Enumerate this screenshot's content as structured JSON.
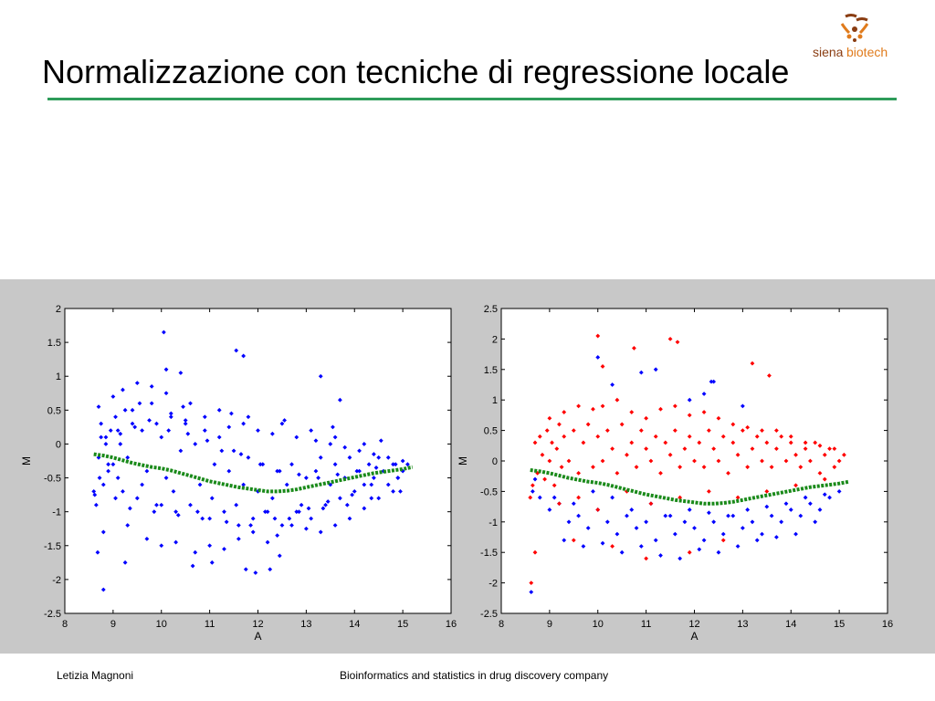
{
  "slide": {
    "title": "Normalizzazione con tecniche di regressione locale",
    "logo_text_1": "siena",
    "logo_text_2": "biotech",
    "footer_author": "Letizia Magnoni",
    "footer_description": "Bioinformatics and statistics in drug discovery company"
  },
  "colors": {
    "accent_line": "#2e9c5a",
    "logo_brown": "#8a3d12",
    "logo_orange": "#e07b1c"
  },
  "chart_data": [
    {
      "type": "scatter",
      "title": "",
      "xlabel": "A",
      "ylabel": "M",
      "xlim": [
        8,
        16
      ],
      "ylim": [
        -2.5,
        2
      ],
      "xticks": [
        8,
        9,
        10,
        11,
        12,
        13,
        14,
        15,
        16
      ],
      "xtick_labels": [
        "8",
        "9",
        "10",
        "11",
        "12",
        "13",
        "14",
        "15",
        "16"
      ],
      "yticks": [
        -2.5,
        -2,
        -1.5,
        -1,
        -0.5,
        0,
        0.5,
        1,
        1.5,
        2
      ],
      "ytick_labels": [
        "-2.5",
        "-2",
        "-1.5",
        "-1",
        "-0.5",
        "0",
        "0.5",
        "1",
        "1.5",
        "2"
      ],
      "grid": false,
      "series": [
        {
          "color": "#0000ff",
          "kind": "points",
          "x": [
            8.7,
            8.75,
            8.8,
            8.85,
            8.9,
            8.95,
            9.0,
            9.05,
            9.1,
            9.15,
            9.2,
            9.25,
            9.3,
            9.4,
            9.5,
            9.6,
            9.7,
            9.8,
            9.9,
            10.0,
            10.1,
            10.2,
            10.3,
            10.4,
            10.5,
            10.6,
            10.7,
            10.8,
            10.9,
            11.0,
            11.1,
            11.2,
            11.3,
            11.4,
            11.5,
            11.6,
            11.7,
            11.8,
            11.9,
            12.0,
            12.1,
            12.2,
            12.3,
            12.4,
            12.5,
            12.6,
            12.7,
            12.8,
            12.9,
            13.0,
            13.1,
            13.2,
            13.3,
            13.4,
            13.5,
            13.6,
            13.7,
            13.8,
            13.9,
            14.0,
            14.1,
            14.2,
            14.3,
            14.4,
            14.5,
            14.6,
            14.7,
            14.8,
            14.9,
            15.0,
            15.1,
            8.6,
            8.65,
            8.7,
            9.0,
            9.2,
            9.5,
            9.8,
            10.1,
            10.4,
            10.1,
            10.6,
            11.2,
            11.8,
            12.5,
            13.1,
            13.6,
            14.2,
            8.8,
            9.3,
            9.7,
            10.0,
            10.3,
            10.7,
            11.0,
            11.3,
            11.6,
            11.9,
            12.2,
            12.4,
            12.7,
            13.0,
            13.3,
            13.6,
            13.9,
            14.2,
            14.5,
            14.8,
            8.75,
            9.1,
            9.4,
            9.9,
            10.2,
            10.5,
            10.9,
            11.4,
            11.7,
            12.0,
            12.3,
            12.8,
            13.2,
            13.5,
            13.8,
            14.1,
            14.4,
            14.7,
            15.0,
            8.72,
            8.9,
            9.05,
            9.6,
            10.0,
            10.25,
            10.75,
            11.05,
            11.55,
            12.15,
            12.65,
            13.05,
            13.45,
            13.95,
            14.35,
            14.9,
            8.85,
            9.15,
            9.45,
            9.75,
            10.15,
            10.55,
            10.95,
            11.25,
            11.65,
            12.05,
            12.45,
            12.85,
            13.25,
            13.65,
            14.05,
            14.45,
            14.85,
            9.35,
            9.85,
            10.35,
            10.85,
            11.35,
            11.85,
            12.35,
            12.85,
            13.35,
            13.85,
            14.35,
            14.95,
            9.55,
            10.45,
            11.45,
            12.55,
            13.55,
            14.55,
            11.05,
            12.25,
            12.45,
            11.95,
            9.25,
            10.65,
            11.75,
            8.68,
            8.8,
            13.3,
            13.7,
            11.55,
            11.7,
            10.05,
            8.62
          ],
          "y": [
            -0.2,
            0.3,
            -0.6,
            0.1,
            -0.4,
            0.2,
            -0.3,
            0.4,
            -0.5,
            0.0,
            -0.7,
            0.5,
            -0.2,
            0.3,
            -0.8,
            0.2,
            -0.4,
            0.6,
            -0.9,
            0.1,
            -0.5,
            0.4,
            -1.0,
            -0.1,
            0.3,
            -0.9,
            0.0,
            -0.6,
            0.2,
            -1.1,
            -0.3,
            0.1,
            -1.0,
            -0.4,
            -0.1,
            -1.2,
            -0.6,
            -0.2,
            -1.1,
            -0.7,
            -0.3,
            -1.0,
            -0.8,
            -0.4,
            -1.2,
            -0.6,
            -0.3,
            -1.0,
            -0.9,
            -0.5,
            -1.1,
            -0.4,
            -0.2,
            -0.9,
            -0.6,
            -0.3,
            -0.8,
            -0.5,
            -0.2,
            -0.7,
            -0.4,
            -0.6,
            -0.3,
            -0.5,
            -0.2,
            -0.4,
            -0.6,
            -0.3,
            -0.5,
            -0.4,
            -0.3,
            -0.7,
            -0.9,
            0.55,
            0.7,
            0.8,
            0.9,
            0.85,
            1.1,
            1.05,
            0.75,
            0.6,
            0.5,
            0.4,
            0.3,
            0.2,
            0.1,
            0.0,
            -1.3,
            -1.2,
            -1.4,
            -1.5,
            -1.45,
            -1.6,
            -1.5,
            -1.55,
            -1.4,
            -1.3,
            -1.45,
            -1.35,
            -1.2,
            -1.25,
            -1.3,
            -1.2,
            -1.1,
            -0.95,
            -0.8,
            -0.7,
            0.1,
            0.2,
            0.5,
            0.3,
            0.45,
            0.35,
            0.4,
            0.25,
            0.3,
            0.2,
            0.15,
            0.1,
            0.05,
            0.0,
            -0.05,
            -0.1,
            -0.15,
            -0.2,
            -0.25,
            -0.5,
            -0.3,
            -0.8,
            -0.6,
            -0.9,
            -0.7,
            -1.0,
            -0.8,
            -0.9,
            -1.0,
            -1.1,
            -0.95,
            -0.85,
            -0.75,
            -0.6,
            -0.5,
            0.0,
            0.15,
            0.25,
            0.35,
            0.2,
            0.15,
            0.05,
            -0.1,
            -0.15,
            -0.3,
            -0.4,
            -0.45,
            -0.5,
            -0.45,
            -0.4,
            -0.35,
            -0.3,
            -0.95,
            -1.0,
            -1.05,
            -1.1,
            -1.15,
            -1.2,
            -1.1,
            -1.0,
            -0.95,
            -0.9,
            -0.8,
            -0.7,
            0.6,
            0.55,
            0.45,
            0.35,
            0.25,
            0.05,
            -1.75,
            -1.85,
            -1.65,
            -1.9,
            -1.75,
            -1.8,
            -1.85,
            -1.6,
            -2.15,
            1.0,
            0.65,
            1.38,
            1.3,
            1.65,
            -0.75
          ],
          "name": ""
        },
        {
          "color": "#1a8a1a",
          "kind": "curve",
          "x": [
            8.6,
            8.8,
            9.0,
            9.2,
            9.4,
            9.6,
            9.8,
            10.0,
            10.2,
            10.4,
            10.6,
            10.8,
            11.0,
            11.2,
            11.4,
            11.6,
            11.8,
            12.0,
            12.2,
            12.4,
            12.6,
            12.8,
            13.0,
            13.2,
            13.4,
            13.6,
            13.8,
            14.0,
            14.2,
            14.4,
            14.6,
            14.8,
            15.0,
            15.2
          ],
          "y": [
            -0.15,
            -0.17,
            -0.2,
            -0.24,
            -0.28,
            -0.31,
            -0.34,
            -0.36,
            -0.39,
            -0.43,
            -0.47,
            -0.51,
            -0.55,
            -0.58,
            -0.61,
            -0.64,
            -0.66,
            -0.68,
            -0.7,
            -0.7,
            -0.69,
            -0.67,
            -0.64,
            -0.61,
            -0.58,
            -0.55,
            -0.52,
            -0.49,
            -0.46,
            -0.43,
            -0.41,
            -0.39,
            -0.37,
            -0.34
          ],
          "name": ""
        }
      ]
    },
    {
      "type": "scatter",
      "title": "",
      "xlabel": "A",
      "ylabel": "M",
      "xlim": [
        8,
        16
      ],
      "ylim": [
        -2.5,
        2.5
      ],
      "xticks": [
        8,
        9,
        10,
        11,
        12,
        13,
        14,
        15,
        16
      ],
      "xtick_labels": [
        "8",
        "9",
        "10",
        "11",
        "12",
        "13",
        "14",
        "15",
        "16"
      ],
      "yticks": [
        -2.5,
        -2,
        -1.5,
        -1,
        -0.5,
        0,
        0.5,
        1,
        1.5,
        2,
        2.5
      ],
      "ytick_labels": [
        "-2.5",
        "-2",
        "-1.5",
        "-1",
        "-0.5",
        "0",
        "0.5",
        "1",
        "1.5",
        "2",
        "2.5"
      ],
      "grid": false,
      "series": [
        {
          "color": "#0000ff",
          "kind": "points",
          "x": [
            8.7,
            8.8,
            9.0,
            9.2,
            9.4,
            9.6,
            9.8,
            10.0,
            10.2,
            10.4,
            10.6,
            10.8,
            11.0,
            11.2,
            11.4,
            11.6,
            11.8,
            12.0,
            12.2,
            12.4,
            12.6,
            12.8,
            13.0,
            13.2,
            13.4,
            13.6,
            13.8,
            14.0,
            14.2,
            14.4,
            14.6,
            14.8,
            15.0,
            8.65,
            9.1,
            9.5,
            9.9,
            10.3,
            10.7,
            11.1,
            11.5,
            11.9,
            12.3,
            12.7,
            13.1,
            13.5,
            13.9,
            14.3,
            14.7,
            9.3,
            9.7,
            10.1,
            10.5,
            10.9,
            11.3,
            11.7,
            12.1,
            12.5,
            12.9,
            13.3,
            13.7,
            14.1,
            14.5,
            8.62,
            10.0,
            11.2,
            12.4,
            10.3,
            10.9,
            12.2,
            12.35,
            11.9,
            13.0
          ],
          "y": [
            -0.3,
            -0.6,
            -0.8,
            -0.7,
            -1.0,
            -0.9,
            -1.1,
            -0.8,
            -1.0,
            -1.2,
            -0.9,
            -1.1,
            -1.0,
            -1.3,
            -0.9,
            -1.2,
            -1.0,
            -1.1,
            -1.3,
            -1.0,
            -1.2,
            -0.9,
            -1.1,
            -1.0,
            -1.2,
            -0.9,
            -1.0,
            -0.8,
            -0.9,
            -0.7,
            -0.8,
            -0.6,
            -0.5,
            -0.5,
            -0.6,
            -0.7,
            -0.5,
            -0.6,
            -0.8,
            -0.7,
            -0.9,
            -0.8,
            -0.85,
            -0.9,
            -0.8,
            -0.75,
            -0.7,
            -0.6,
            -0.55,
            -1.3,
            -1.4,
            -1.35,
            -1.5,
            -1.4,
            -1.55,
            -1.6,
            -1.45,
            -1.5,
            -1.4,
            -1.3,
            -1.25,
            -1.2,
            -1.0,
            -2.15,
            1.7,
            1.5,
            1.3,
            1.25,
            1.45,
            1.1,
            1.3,
            1.0,
            0.9
          ],
          "name": ""
        },
        {
          "color": "#ff0000",
          "kind": "points",
          "x": [
            8.7,
            8.75,
            8.8,
            8.85,
            8.9,
            8.95,
            9.0,
            9.05,
            9.1,
            9.15,
            9.2,
            9.25,
            9.3,
            9.4,
            9.5,
            9.6,
            9.7,
            9.8,
            9.9,
            10.0,
            10.1,
            10.2,
            10.3,
            10.4,
            10.5,
            10.6,
            10.7,
            10.8,
            10.9,
            11.0,
            11.1,
            11.2,
            11.3,
            11.4,
            11.5,
            11.6,
            11.7,
            11.8,
            11.9,
            12.0,
            12.1,
            12.2,
            12.3,
            12.4,
            12.5,
            12.6,
            12.7,
            12.8,
            12.9,
            13.0,
            13.1,
            13.2,
            13.3,
            13.4,
            13.5,
            13.6,
            13.7,
            13.8,
            13.9,
            14.0,
            14.1,
            14.2,
            14.3,
            14.4,
            14.5,
            14.6,
            14.7,
            14.8,
            14.9,
            15.0,
            15.1,
            8.6,
            8.65,
            9.0,
            9.3,
            9.6,
            9.9,
            10.1,
            10.4,
            10.7,
            11.0,
            11.3,
            11.6,
            11.9,
            12.2,
            12.5,
            12.8,
            13.1,
            13.4,
            13.7,
            14.0,
            14.3,
            14.6,
            14.9,
            9.2,
            9.6,
            10.0,
            10.6,
            11.1,
            11.7,
            12.3,
            12.9,
            13.5,
            14.1,
            14.7,
            10.0,
            10.1,
            11.5,
            11.65,
            13.2,
            13.55,
            10.75,
            8.62,
            8.7,
            9.5,
            10.3,
            11.0,
            11.9,
            12.6
          ],
          "y": [
            0.3,
            -0.2,
            0.4,
            0.1,
            -0.3,
            0.5,
            0.0,
            0.3,
            -0.4,
            0.2,
            0.6,
            -0.1,
            0.4,
            0.0,
            0.5,
            -0.2,
            0.3,
            0.6,
            -0.1,
            0.4,
            0.0,
            0.5,
            0.2,
            -0.2,
            0.6,
            0.1,
            0.3,
            -0.1,
            0.5,
            0.2,
            0.0,
            0.4,
            -0.2,
            0.3,
            0.1,
            0.5,
            -0.1,
            0.2,
            0.4,
            0.0,
            0.3,
            -0.1,
            0.5,
            0.2,
            0.0,
            0.4,
            -0.2,
            0.3,
            0.1,
            0.5,
            -0.1,
            0.2,
            0.4,
            0.0,
            0.3,
            -0.1,
            0.2,
            0.4,
            0.0,
            0.3,
            0.1,
            -0.1,
            0.2,
            0.0,
            0.3,
            -0.2,
            0.1,
            0.2,
            -0.1,
            0.0,
            0.1,
            -0.6,
            -0.4,
            0.7,
            0.8,
            0.9,
            0.85,
            0.9,
            1.0,
            0.8,
            0.7,
            0.85,
            0.9,
            0.75,
            0.8,
            0.7,
            0.6,
            0.55,
            0.5,
            0.5,
            0.4,
            0.3,
            0.25,
            0.2,
            -0.7,
            -0.6,
            -0.8,
            -0.5,
            -0.7,
            -0.6,
            -0.5,
            -0.6,
            -0.5,
            -0.4,
            -0.3,
            2.05,
            1.55,
            2.0,
            1.95,
            1.6,
            1.4,
            1.85,
            -2.0,
            -1.5,
            -1.3,
            -1.4,
            -1.6,
            -1.5,
            -1.3
          ],
          "name": ""
        },
        {
          "color": "#1a8a1a",
          "kind": "curve",
          "x": [
            8.6,
            8.8,
            9.0,
            9.2,
            9.4,
            9.6,
            9.8,
            10.0,
            10.2,
            10.4,
            10.6,
            10.8,
            11.0,
            11.2,
            11.4,
            11.6,
            11.8,
            12.0,
            12.2,
            12.4,
            12.6,
            12.8,
            13.0,
            13.2,
            13.4,
            13.6,
            13.8,
            14.0,
            14.2,
            14.4,
            14.6,
            14.8,
            15.0,
            15.2
          ],
          "y": [
            -0.15,
            -0.17,
            -0.2,
            -0.24,
            -0.28,
            -0.31,
            -0.34,
            -0.36,
            -0.39,
            -0.43,
            -0.47,
            -0.51,
            -0.55,
            -0.58,
            -0.61,
            -0.64,
            -0.66,
            -0.68,
            -0.7,
            -0.7,
            -0.69,
            -0.67,
            -0.64,
            -0.61,
            -0.58,
            -0.55,
            -0.52,
            -0.49,
            -0.46,
            -0.43,
            -0.41,
            -0.39,
            -0.37,
            -0.34
          ],
          "name": ""
        }
      ]
    }
  ]
}
